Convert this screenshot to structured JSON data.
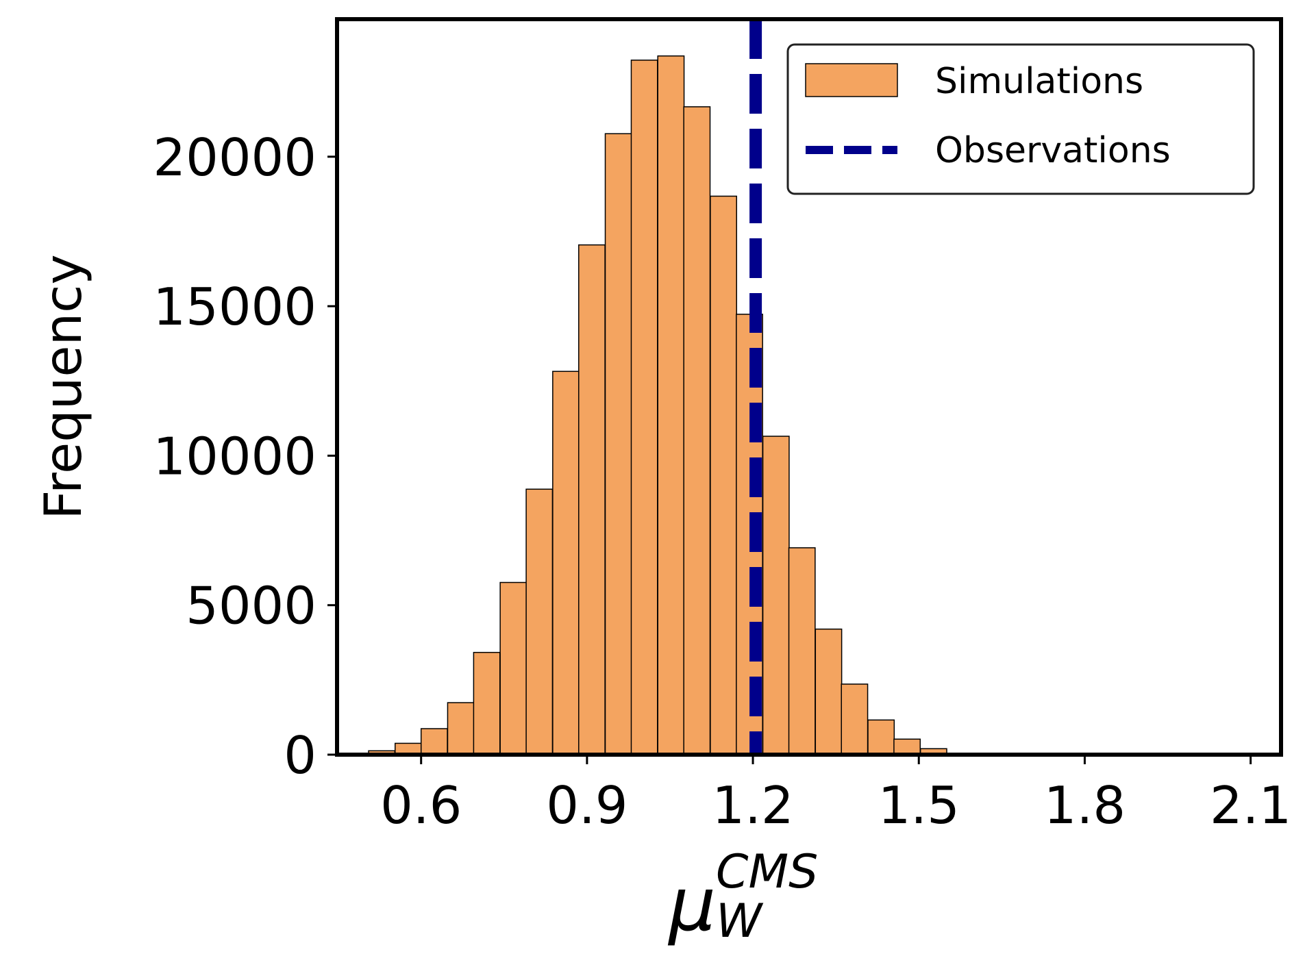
{
  "chart_data": {
    "type": "bar",
    "subtype": "histogram",
    "title": "",
    "xlabel_main": "μ",
    "xlabel_sub": "W",
    "xlabel_sup": "CMS",
    "ylabel": "Frequency",
    "xlim": [
      0.448,
      2.155
    ],
    "ylim": [
      0,
      24600
    ],
    "x_ticks": [
      0.6,
      0.9,
      1.2,
      1.5,
      1.8,
      2.1
    ],
    "x_tick_labels": [
      "0.6",
      "0.9",
      "1.2",
      "1.5",
      "1.8",
      "2.1"
    ],
    "y_ticks": [
      0,
      5000,
      10000,
      15000,
      20000
    ],
    "y_tick_labels": [
      "0",
      "5000",
      "10000",
      "15000",
      "20000"
    ],
    "bin_width": 0.0475,
    "bins": [
      {
        "left": 0.505,
        "count": 130
      },
      {
        "left": 0.553,
        "count": 380
      },
      {
        "left": 0.6,
        "count": 870
      },
      {
        "left": 0.648,
        "count": 1740
      },
      {
        "left": 0.695,
        "count": 3420
      },
      {
        "left": 0.743,
        "count": 5760
      },
      {
        "left": 0.79,
        "count": 8880
      },
      {
        "left": 0.838,
        "count": 12820
      },
      {
        "left": 0.885,
        "count": 17050
      },
      {
        "left": 0.933,
        "count": 20770
      },
      {
        "left": 0.98,
        "count": 23230
      },
      {
        "left": 1.028,
        "count": 23370
      },
      {
        "left": 1.075,
        "count": 21670
      },
      {
        "left": 1.123,
        "count": 18680
      },
      {
        "left": 1.17,
        "count": 14730
      },
      {
        "left": 1.218,
        "count": 10650
      },
      {
        "left": 1.265,
        "count": 6920
      },
      {
        "left": 1.313,
        "count": 4200
      },
      {
        "left": 1.36,
        "count": 2360
      },
      {
        "left": 1.408,
        "count": 1160
      },
      {
        "left": 1.455,
        "count": 520
      },
      {
        "left": 1.503,
        "count": 200
      }
    ],
    "observation_x": 1.205,
    "colors": {
      "bars": "#f4a460",
      "bar_edge": "#000000",
      "observation_line": "#00008b"
    },
    "legend": {
      "placement": "top-right",
      "entries": [
        {
          "label": "Simulations",
          "kind": "patch"
        },
        {
          "label": "Observations",
          "kind": "dashed-line"
        }
      ]
    }
  }
}
